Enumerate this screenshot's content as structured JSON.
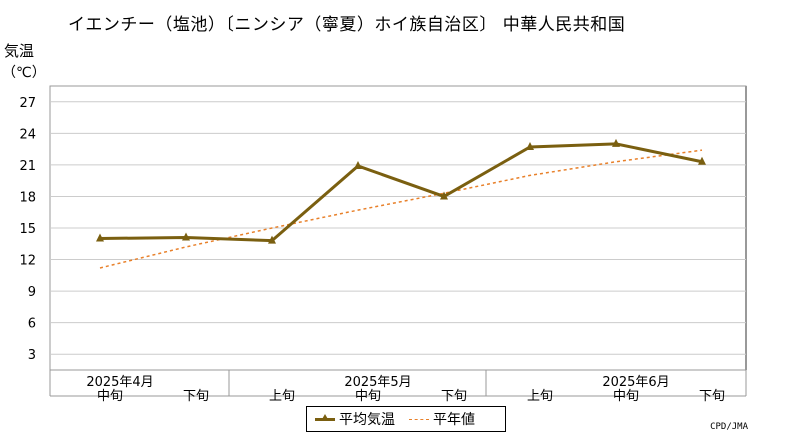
{
  "title": "イエンチー（塩池）〔ニンシア（寧夏）ホイ族自治区〕 中華人民共和国",
  "credit": "CPD/JMA",
  "chart_data": {
    "type": "line",
    "ylabel": "気温",
    "yunit": "（℃）",
    "ylim": [
      1.5,
      28.5
    ],
    "yticks": [
      3,
      6,
      9,
      12,
      15,
      18,
      21,
      24,
      27
    ],
    "grid": true,
    "legend_position": "bottom-center",
    "categories": [
      "中旬",
      "下旬",
      "上旬",
      "中旬",
      "下旬",
      "上旬",
      "中旬",
      "下旬"
    ],
    "month_labels": [
      {
        "label": "2025年4月",
        "index": 0
      },
      {
        "label": "2025年5月",
        "index": 3
      },
      {
        "label": "2025年6月",
        "index": 6
      }
    ],
    "series": [
      {
        "name": "平均気温",
        "color": "#7a5f10",
        "style": "solid-triangle",
        "values": [
          14.0,
          14.1,
          13.8,
          20.9,
          18.0,
          22.7,
          23.0,
          21.3
        ]
      },
      {
        "name": "平年値",
        "color": "#e8802a",
        "style": "dashed",
        "values": [
          11.2,
          13.2,
          15.0,
          16.7,
          18.3,
          20.0,
          21.3,
          22.4
        ]
      }
    ]
  }
}
